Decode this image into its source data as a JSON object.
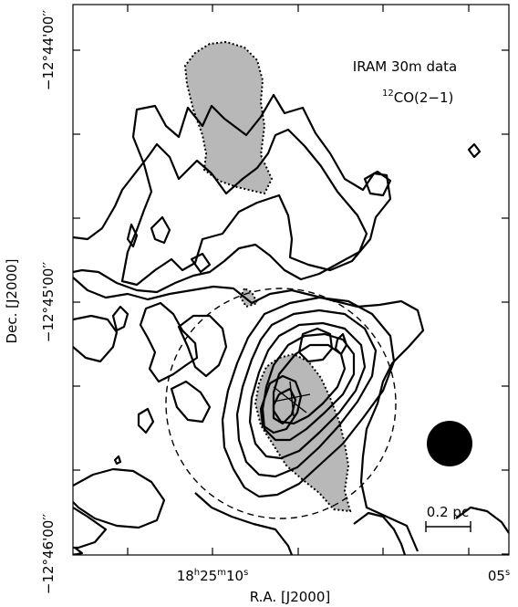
{
  "chart_data": {
    "type": "contour",
    "annotation": {
      "line1": "IRAM 30m data",
      "line2_prefix": "12",
      "line2_rest": "CO(2−1)"
    },
    "xlabel": "R.A. [J2000]",
    "ylabel": "Dec. [J2000]",
    "xticks": [
      {
        "value": "18:25:10",
        "label_h": "18",
        "label_m": "25",
        "label_s": "10"
      },
      {
        "value": "18:25:05",
        "label": "05",
        "label_s": "s"
      }
    ],
    "yticks": [
      {
        "value": "-12:44:00",
        "label": "−12°44'00′′"
      },
      {
        "value": "-12:45:00",
        "label": "−12°45'00′′"
      },
      {
        "value": "-12:46:00",
        "label": "−12°46'00′′"
      }
    ],
    "scalebar": {
      "label": "0.2 pc"
    },
    "beam": "filled-circle",
    "grid": false
  }
}
